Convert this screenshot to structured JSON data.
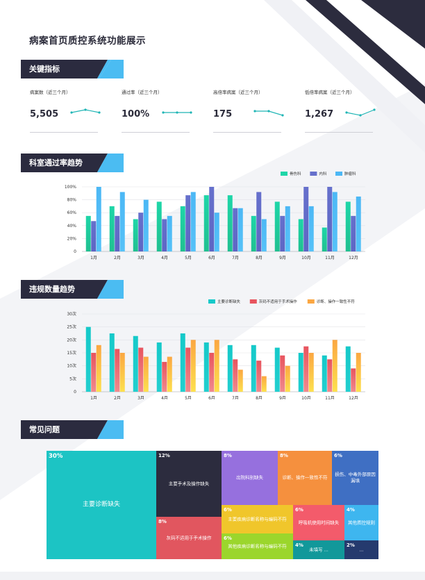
{
  "page": {
    "title": "病案首页质控系统功能展示",
    "colors": {
      "dark": "#2b2b3f",
      "accent": "#4bbcf2",
      "stripe": "#e9eaf0"
    }
  },
  "sections": {
    "kpi": "关键指标",
    "dept": "科室通过率趋势",
    "violations": "违规数量趋势",
    "issues": "常见问题"
  },
  "kpis": [
    {
      "label": "病案数（近三个月）",
      "value": "5,505",
      "spark": [
        3,
        5,
        3
      ]
    },
    {
      "label": "通过率（近三个月）",
      "value": "100%",
      "spark": [
        3,
        3,
        3
      ]
    },
    {
      "label": "高倍率病案（近三个月）",
      "value": "175",
      "spark": [
        4,
        4,
        1
      ]
    },
    {
      "label": "低倍率病案（近三个月）",
      "value": "1,267",
      "spark": [
        3,
        1,
        5
      ]
    }
  ],
  "chart_data": [
    {
      "type": "bar",
      "categories": [
        "1月",
        "2月",
        "3月",
        "4月",
        "5月",
        "6月",
        "7月",
        "8月",
        "9月",
        "10月",
        "11月",
        "12月"
      ],
      "series": [
        {
          "name": "骨伤科",
          "color": "#1ed6a8",
          "values": [
            55,
            70,
            50,
            77,
            70,
            87,
            87,
            55,
            77,
            50,
            37,
            77
          ]
        },
        {
          "name": "内科",
          "color": "#6670cc",
          "values": [
            47,
            55,
            60,
            50,
            87,
            100,
            67,
            92,
            55,
            100,
            100,
            55
          ]
        },
        {
          "name": "肿瘤科",
          "color": "#4cb8f5",
          "values": [
            100,
            92,
            80,
            55,
            92,
            60,
            67,
            50,
            70,
            70,
            92,
            85
          ]
        }
      ],
      "yticks": [
        "0",
        "20%",
        "40%",
        "60%",
        "80%",
        "100%"
      ],
      "ylim": [
        0,
        100
      ],
      "legend": "top-right",
      "grid": true
    },
    {
      "type": "bar",
      "categories": [
        "1月",
        "2月",
        "3月",
        "4月",
        "5月",
        "6月",
        "7月",
        "8月",
        "9月",
        "10月",
        "11月",
        "12月"
      ],
      "series": [
        {
          "name": "主要诊断缺失",
          "color": "#15c9c9",
          "values": [
            25,
            22.5,
            21.5,
            19,
            22.5,
            19,
            18,
            18,
            17,
            15,
            14,
            17.5
          ]
        },
        {
          "name": "灰码不适用于手术操作",
          "color": "#e8545e",
          "values": [
            15,
            16.5,
            17,
            11.5,
            17,
            15,
            12.5,
            12,
            14,
            17.5,
            12.5,
            9
          ]
        },
        {
          "name": "诊断、操作一致性不符",
          "color": "#fba742",
          "values": [
            18,
            15,
            13.5,
            13.5,
            20,
            20,
            8.5,
            6,
            10,
            15,
            20,
            15
          ]
        }
      ],
      "yticks": [
        "0",
        "5次",
        "10次",
        "15次",
        "20次",
        "25次",
        "30次"
      ],
      "ylim": [
        0,
        30
      ],
      "legend": "top-right",
      "grid": true
    }
  ],
  "issues": {
    "cells": [
      {
        "pct": "30%",
        "name": "主要诊断缺失",
        "color": "#1cc4c4"
      },
      {
        "pct": "12%",
        "name": "主要手术及操作缺失",
        "color": "#2c2c3e"
      },
      {
        "pct": "8%",
        "name": "灰码不适用于手术操作",
        "color": "#e1565f"
      },
      {
        "pct": "8%",
        "name": "出院科别缺失",
        "color": "#9670de"
      },
      {
        "pct": "6%",
        "name": "主要疾病诊断名称与编码不符",
        "color": "#f0c62b"
      },
      {
        "pct": "6%",
        "name": "其他疾病诊断名称与编码不符",
        "color": "#9bd62c"
      },
      {
        "pct": "8%",
        "name": "诊断、操作一致性不符",
        "color": "#f5903e"
      },
      {
        "pct": "6%",
        "name": "呼吸机使用时间缺失",
        "color": "#f35b6b"
      },
      {
        "pct": "4%",
        "name": "未填写 ...",
        "color": "#12989a"
      },
      {
        "pct": "6%",
        "name": "损伤、中毒外部原因漏填",
        "color": "#3f6fc3"
      },
      {
        "pct": "4%",
        "name": "其他质控规则",
        "color": "#3eb6ef"
      },
      {
        "pct": "2%",
        "name": "...",
        "color": "#253a6e"
      }
    ]
  }
}
